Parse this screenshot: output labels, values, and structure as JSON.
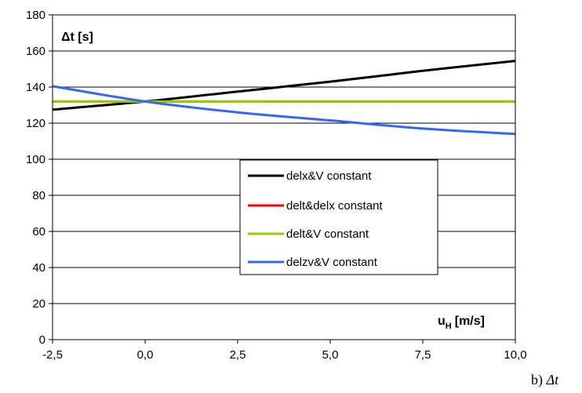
{
  "chart_data": {
    "type": "line",
    "ylabel": "Δt [s]",
    "xlabel_main": "u",
    "xlabel_sub": "H",
    "xlabel_unit": "[m/s]",
    "xlim": [
      -2.5,
      10.0
    ],
    "ylim": [
      0,
      180
    ],
    "x_ticks": [
      -2.5,
      0.0,
      2.5,
      5.0,
      7.5,
      10.0
    ],
    "x_tick_labels": [
      "-2,5",
      "0,0",
      "2,5",
      "5,0",
      "7,5",
      "10,0"
    ],
    "y_ticks": [
      0,
      20,
      40,
      60,
      80,
      100,
      120,
      140,
      160,
      180
    ],
    "y_tick_labels": [
      "0",
      "20",
      "40",
      "60",
      "80",
      "100",
      "120",
      "140",
      "160",
      "180"
    ],
    "grid": "horizontal",
    "legend_position": "center-right",
    "x": [
      -2.5,
      0.0,
      2.5,
      5.0,
      7.5,
      10.0
    ],
    "series": [
      {
        "name": "delx&V constant",
        "color": "#000000",
        "values": [
          127.5,
          132,
          137.5,
          143,
          149,
          154.5
        ]
      },
      {
        "name": "delt&delx constant",
        "color": "#ff0000",
        "values": [
          132,
          132,
          132,
          132,
          132,
          132
        ]
      },
      {
        "name": "delt&V constant",
        "color": "#99cc00",
        "values": [
          132,
          132,
          132,
          132,
          132,
          132
        ]
      },
      {
        "name": "delzv&V constant",
        "color": "#3366ff",
        "values": [
          140.5,
          132,
          126,
          121.5,
          117,
          114
        ]
      }
    ]
  },
  "caption": {
    "prefix": "b)",
    "symbol": "Δt"
  }
}
